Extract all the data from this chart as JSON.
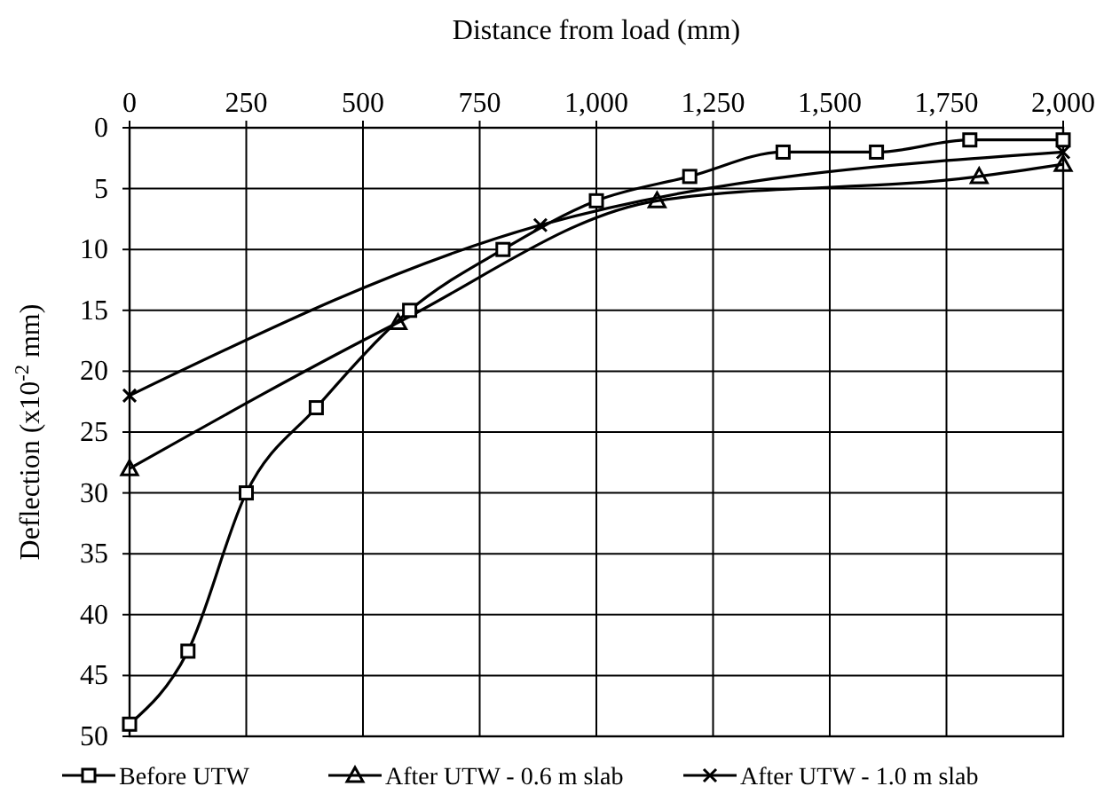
{
  "chart_data": {
    "type": "line",
    "xlabel": "Distance from load (mm)",
    "ylabel": "Deflection (x10$^{-2}$ mm)",
    "xlim": [
      0,
      2000
    ],
    "xticks": [
      0,
      250,
      500,
      750,
      {
        "value": 1000,
        "label": "1,000"
      },
      {
        "value": 1250,
        "label": "1,250"
      },
      {
        "value": 1500,
        "label": "1,500"
      },
      {
        "value": 1750,
        "label": "1,750"
      },
      {
        "value": 2000,
        "label": "2,000"
      }
    ],
    "ylim": [
      50,
      0
    ],
    "yticks": [
      0,
      5,
      10,
      15,
      20,
      25,
      30,
      35,
      40,
      45,
      50
    ],
    "grid": true,
    "legend": "bottom",
    "series": [
      {
        "name": "Before UTW",
        "color": "#000000",
        "marker": "square",
        "x": [
          0,
          125,
          250,
          400,
          600,
          800,
          1000,
          1200,
          1400,
          1600,
          1800,
          2000
        ],
        "values": [
          49,
          43,
          30,
          23,
          15,
          10,
          6,
          4,
          2,
          2,
          1,
          1
        ]
      },
      {
        "name": "After UTW - 0.6 m slab",
        "color": "#000000",
        "marker": "triangle",
        "x": [
          0,
          575,
          1130,
          1820,
          2000
        ],
        "values": [
          28,
          16,
          6,
          4,
          3
        ]
      },
      {
        "name": "After UTW - 1.0 m slab",
        "color": "#000000",
        "marker": "cross",
        "x": [
          0,
          880,
          2000
        ],
        "values": [
          22,
          8,
          2
        ]
      }
    ]
  }
}
